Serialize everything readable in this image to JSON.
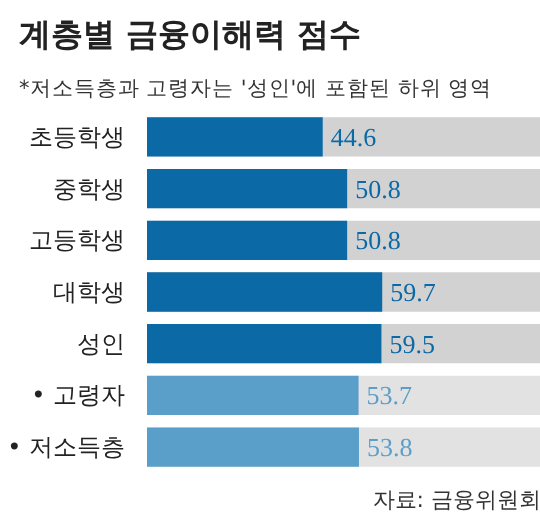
{
  "chart_data": {
    "type": "bar",
    "orientation": "horizontal",
    "title": "계층별 금융이해력 점수",
    "subtitle": "*저소득층과 고령자는 '성인'에 포함된 하위 영역",
    "categories": [
      "초등학생",
      "중학생",
      "고등학생",
      "대학생",
      "성인",
      "• 고령자",
      "• 저소득층"
    ],
    "values": [
      44.6,
      50.8,
      50.8,
      59.7,
      59.5,
      53.7,
      53.8
    ],
    "colors": [
      "#0b69a6",
      "#0b69a6",
      "#0b69a6",
      "#0b69a6",
      "#0b69a6",
      "#5a9fc9",
      "#5a9fc9"
    ],
    "xlim": [
      0,
      100
    ],
    "data_labels": true,
    "tick_labels": "y",
    "grid": false,
    "annotations": [
      "자료: 금융위원회"
    ]
  }
}
